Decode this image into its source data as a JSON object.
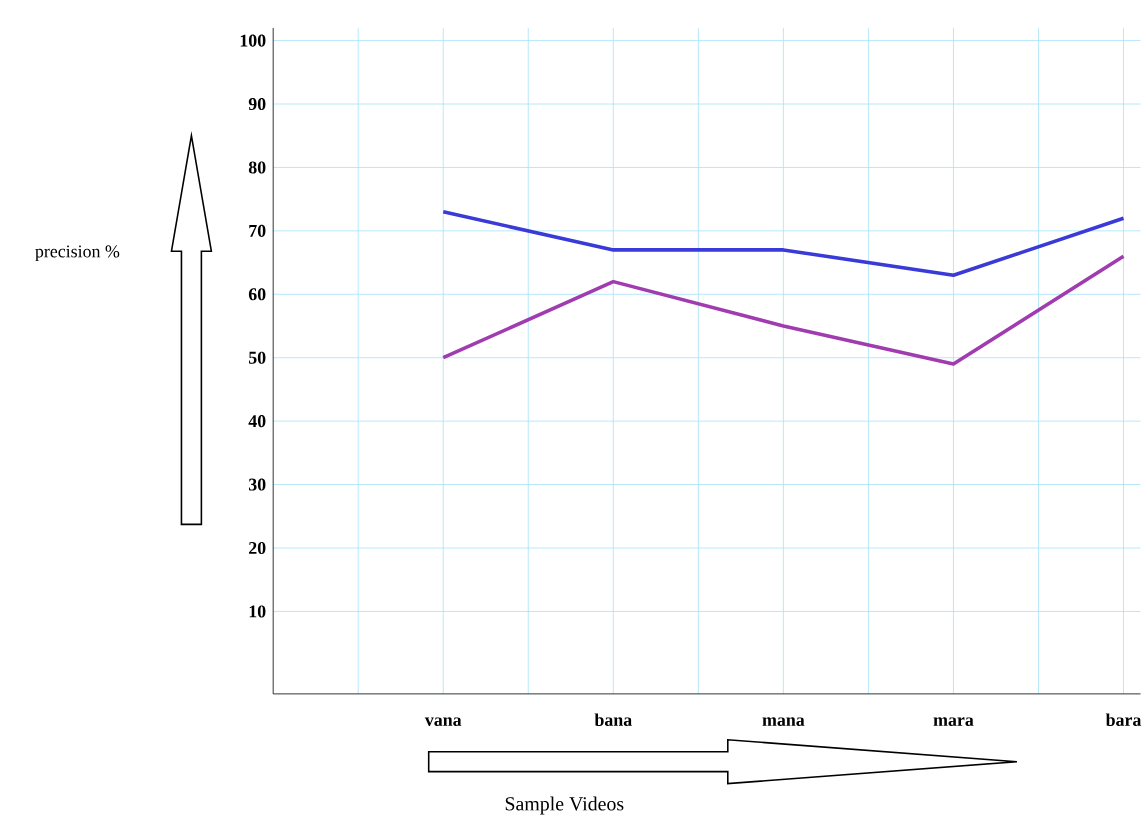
{
  "chart_data": {
    "type": "line",
    "xlabel": "Sample Videos",
    "annotations": [
      "precision %"
    ],
    "categories": [
      "vana",
      "bana",
      "mana",
      "mara",
      "bara"
    ],
    "series": [
      {
        "color": "#3a3ad8",
        "values": [
          73,
          67,
          67,
          63,
          72
        ]
      },
      {
        "color": "#a03cb0",
        "values": [
          50,
          62,
          55,
          49,
          66
        ]
      }
    ],
    "ylim": [
      -3,
      102
    ],
    "yticks": [
      10,
      20,
      30,
      40,
      50,
      60,
      70,
      80,
      90,
      100
    ],
    "grid": true,
    "marker": "none",
    "line_style": "solid"
  }
}
